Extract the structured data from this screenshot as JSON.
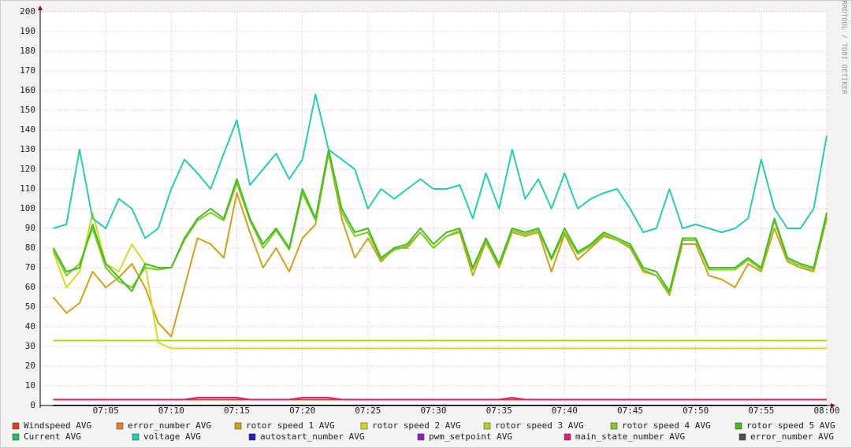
{
  "chart_data": {
    "type": "line",
    "watermark": "RRDTOOL / TOBI OETIKER",
    "x": [
      "07:01",
      "07:02",
      "07:03",
      "07:04",
      "07:05",
      "07:06",
      "07:07",
      "07:08",
      "07:09",
      "07:10",
      "07:11",
      "07:12",
      "07:13",
      "07:14",
      "07:15",
      "07:16",
      "07:17",
      "07:18",
      "07:19",
      "07:20",
      "07:21",
      "07:22",
      "07:23",
      "07:24",
      "07:25",
      "07:26",
      "07:27",
      "07:28",
      "07:29",
      "07:30",
      "07:31",
      "07:32",
      "07:33",
      "07:34",
      "07:35",
      "07:36",
      "07:37",
      "07:38",
      "07:39",
      "07:40",
      "07:41",
      "07:42",
      "07:43",
      "07:44",
      "07:45",
      "07:46",
      "07:47",
      "07:48",
      "07:49",
      "07:50",
      "07:51",
      "07:52",
      "07:53",
      "07:54",
      "07:55",
      "07:56",
      "07:57",
      "07:58",
      "07:59",
      "08:00"
    ],
    "xlim": [
      "07:00",
      "08:00"
    ],
    "xticks": [
      "07:05",
      "07:10",
      "07:15",
      "07:20",
      "07:25",
      "07:30",
      "07:35",
      "07:40",
      "07:45",
      "07:50",
      "07:55",
      "08:00"
    ],
    "ylim": [
      0,
      200
    ],
    "yticks": [
      0,
      10,
      20,
      30,
      40,
      50,
      60,
      70,
      80,
      90,
      100,
      110,
      120,
      130,
      140,
      150,
      160,
      170,
      180,
      190,
      200
    ],
    "grid": true,
    "series": [
      {
        "name": "Windspeed AVG",
        "color": "#e0401a",
        "values": [
          3,
          3,
          3,
          3,
          3,
          3,
          3,
          3,
          3,
          3,
          3,
          3,
          3,
          3,
          3,
          3,
          3,
          3,
          3,
          3,
          3,
          3,
          3,
          3,
          3,
          3,
          3,
          3,
          3,
          3,
          3,
          3,
          3,
          3,
          3,
          3,
          3,
          3,
          3,
          3,
          3,
          3,
          3,
          3,
          3,
          3,
          3,
          3,
          3,
          3,
          3,
          3,
          3,
          3,
          3,
          3,
          3,
          3,
          3,
          3
        ]
      },
      {
        "name": "error_number AVG",
        "color": "#f07a20",
        "values": [
          0,
          0,
          0,
          0,
          0,
          0,
          0,
          0,
          0,
          0,
          0,
          0,
          0,
          0,
          0,
          0,
          0,
          0,
          0,
          0,
          0,
          0,
          0,
          0,
          0,
          0,
          0,
          0,
          0,
          0,
          0,
          0,
          0,
          0,
          0,
          0,
          0,
          0,
          0,
          0,
          0,
          0,
          0,
          0,
          0,
          0,
          0,
          0,
          0,
          0,
          0,
          0,
          0,
          0,
          0,
          0,
          0,
          0,
          0,
          0
        ]
      },
      {
        "name": "rotor speed 1 AVG",
        "color": "#d4a017",
        "values": [
          55,
          47,
          52,
          68,
          60,
          65,
          72,
          60,
          42,
          35,
          60,
          85,
          82,
          75,
          108,
          88,
          70,
          80,
          68,
          85,
          92,
          128,
          95,
          75,
          85,
          73,
          80,
          80,
          88,
          80,
          86,
          88,
          66,
          83,
          70,
          88,
          86,
          88,
          68,
          87,
          74,
          80,
          86,
          84,
          80,
          68,
          66,
          56,
          82,
          82,
          66,
          64,
          60,
          72,
          68,
          90,
          73,
          70,
          68,
          95
        ]
      },
      {
        "name": "rotor speed 2 AVG",
        "color": "#d8d820",
        "values": [
          78,
          60,
          68,
          98,
          72,
          68,
          82,
          72,
          32,
          29,
          29,
          29,
          29,
          29,
          29,
          29,
          29,
          29,
          29,
          29,
          29,
          29,
          29,
          29,
          29,
          29,
          29,
          29,
          29,
          29,
          29,
          29,
          29,
          29,
          29,
          29,
          29,
          29,
          29,
          29,
          29,
          29,
          29,
          29,
          29,
          29,
          29,
          29,
          29,
          29,
          29,
          29,
          29,
          29,
          29,
          29,
          29,
          29,
          29,
          29
        ]
      },
      {
        "name": "rotor speed 3 AVG",
        "color": "#a8d820",
        "values": [
          33,
          33,
          33,
          33,
          33,
          33,
          33,
          33,
          33,
          33,
          33,
          33,
          33,
          33,
          33,
          33,
          33,
          33,
          33,
          33,
          33,
          33,
          33,
          33,
          33,
          33,
          33,
          33,
          33,
          33,
          33,
          33,
          33,
          33,
          33,
          33,
          33,
          33,
          33,
          33,
          33,
          33,
          33,
          33,
          33,
          33,
          33,
          33,
          33,
          33,
          33,
          33,
          33,
          33,
          33,
          33,
          33,
          33,
          33,
          33
        ]
      },
      {
        "name": "rotor speed 4 AVG",
        "color": "#80cc20",
        "values": [
          79,
          66,
          72,
          90,
          70,
          63,
          60,
          70,
          69,
          70,
          84,
          94,
          98,
          94,
          113,
          94,
          80,
          89,
          79,
          108,
          94,
          128,
          98,
          86,
          88,
          74,
          79,
          81,
          88,
          80,
          86,
          89,
          69,
          84,
          71,
          89,
          87,
          89,
          74,
          88,
          77,
          81,
          87,
          84,
          81,
          69,
          66,
          57,
          84,
          84,
          69,
          69,
          69,
          74,
          69,
          94,
          74,
          71,
          69,
          96
        ]
      },
      {
        "name": "rotor speed 5 AVG",
        "color": "#40c020",
        "values": [
          80,
          68,
          70,
          92,
          72,
          65,
          58,
          72,
          70,
          70,
          85,
          95,
          100,
          95,
          115,
          95,
          82,
          90,
          80,
          110,
          95,
          130,
          100,
          88,
          90,
          75,
          80,
          82,
          90,
          82,
          88,
          90,
          70,
          85,
          72,
          90,
          88,
          90,
          75,
          90,
          78,
          82,
          88,
          85,
          82,
          70,
          68,
          58,
          85,
          85,
          70,
          70,
          70,
          75,
          70,
          95,
          75,
          72,
          70,
          98
        ]
      },
      {
        "name": "Current AVG",
        "color": "#20c060",
        "values": [
          0,
          0,
          0,
          0,
          0,
          0,
          0,
          0,
          0,
          0,
          0,
          0,
          0,
          0,
          0,
          0,
          0,
          0,
          0,
          0,
          0,
          0,
          0,
          0,
          0,
          0,
          0,
          0,
          0,
          0,
          0,
          0,
          0,
          0,
          0,
          0,
          0,
          0,
          0,
          0,
          0,
          0,
          0,
          0,
          0,
          0,
          0,
          0,
          0,
          0,
          0,
          0,
          0,
          0,
          0,
          0,
          0,
          0,
          0,
          0
        ]
      },
      {
        "name": "voltage AVG",
        "color": "#20d0b0",
        "values": [
          90,
          92,
          130,
          95,
          90,
          105,
          100,
          85,
          90,
          110,
          125,
          118,
          110,
          128,
          145,
          112,
          120,
          128,
          115,
          125,
          158,
          130,
          125,
          120,
          100,
          110,
          105,
          110,
          115,
          110,
          110,
          112,
          95,
          118,
          100,
          130,
          105,
          115,
          100,
          118,
          100,
          105,
          108,
          110,
          100,
          88,
          90,
          110,
          90,
          92,
          90,
          88,
          90,
          95,
          125,
          100,
          90,
          90,
          100,
          137
        ]
      },
      {
        "name": "autostart_number AVG",
        "color": "#2020c0",
        "values": [
          0,
          0,
          0,
          0,
          0,
          0,
          0,
          0,
          0,
          0,
          0,
          0,
          0,
          0,
          0,
          0,
          0,
          0,
          0,
          0,
          0,
          0,
          0,
          0,
          0,
          0,
          0,
          0,
          0,
          0,
          0,
          0,
          0,
          0,
          0,
          0,
          0,
          0,
          0,
          0,
          0,
          0,
          0,
          0,
          0,
          0,
          0,
          0,
          0,
          0,
          0,
          0,
          0,
          0,
          0,
          0,
          0,
          0,
          0,
          0
        ]
      },
      {
        "name": "pwm_setpoint AVG",
        "color": "#9020c0",
        "values": [
          0,
          0,
          0,
          0,
          0,
          0,
          0,
          0,
          0,
          0,
          0,
          0,
          0,
          0,
          0,
          0,
          0,
          0,
          0,
          0,
          0,
          0,
          0,
          0,
          0,
          0,
          0,
          0,
          0,
          0,
          0,
          0,
          0,
          0,
          0,
          0,
          0,
          0,
          0,
          0,
          0,
          0,
          0,
          0,
          0,
          0,
          0,
          0,
          0,
          0,
          0,
          0,
          0,
          0,
          0,
          0,
          0,
          0,
          0,
          0
        ]
      },
      {
        "name": "main_state_number AVG",
        "color": "#e02080",
        "values": [
          3,
          3,
          3,
          3,
          3,
          3,
          3,
          3,
          3,
          3,
          3,
          4,
          4,
          4,
          4,
          3,
          3,
          3,
          3,
          4,
          4,
          4,
          3,
          3,
          3,
          3,
          3,
          3,
          3,
          3,
          3,
          3,
          3,
          3,
          3,
          4,
          3,
          3,
          3,
          3,
          3,
          3,
          3,
          3,
          3,
          3,
          3,
          3,
          3,
          3,
          3,
          3,
          3,
          3,
          3,
          3,
          3,
          3,
          3,
          3
        ]
      },
      {
        "name": "error_number AVG",
        "color": "#505050",
        "values": [
          0,
          0,
          0,
          0,
          0,
          0,
          0,
          0,
          0,
          0,
          0,
          0,
          0,
          0,
          0,
          0,
          0,
          0,
          0,
          0,
          0,
          0,
          0,
          0,
          0,
          0,
          0,
          0,
          0,
          0,
          0,
          0,
          0,
          0,
          0,
          0,
          0,
          0,
          0,
          0,
          0,
          0,
          0,
          0,
          0,
          0,
          0,
          0,
          0,
          0,
          0,
          0,
          0,
          0,
          0,
          0,
          0,
          0,
          0,
          0
        ]
      }
    ]
  }
}
